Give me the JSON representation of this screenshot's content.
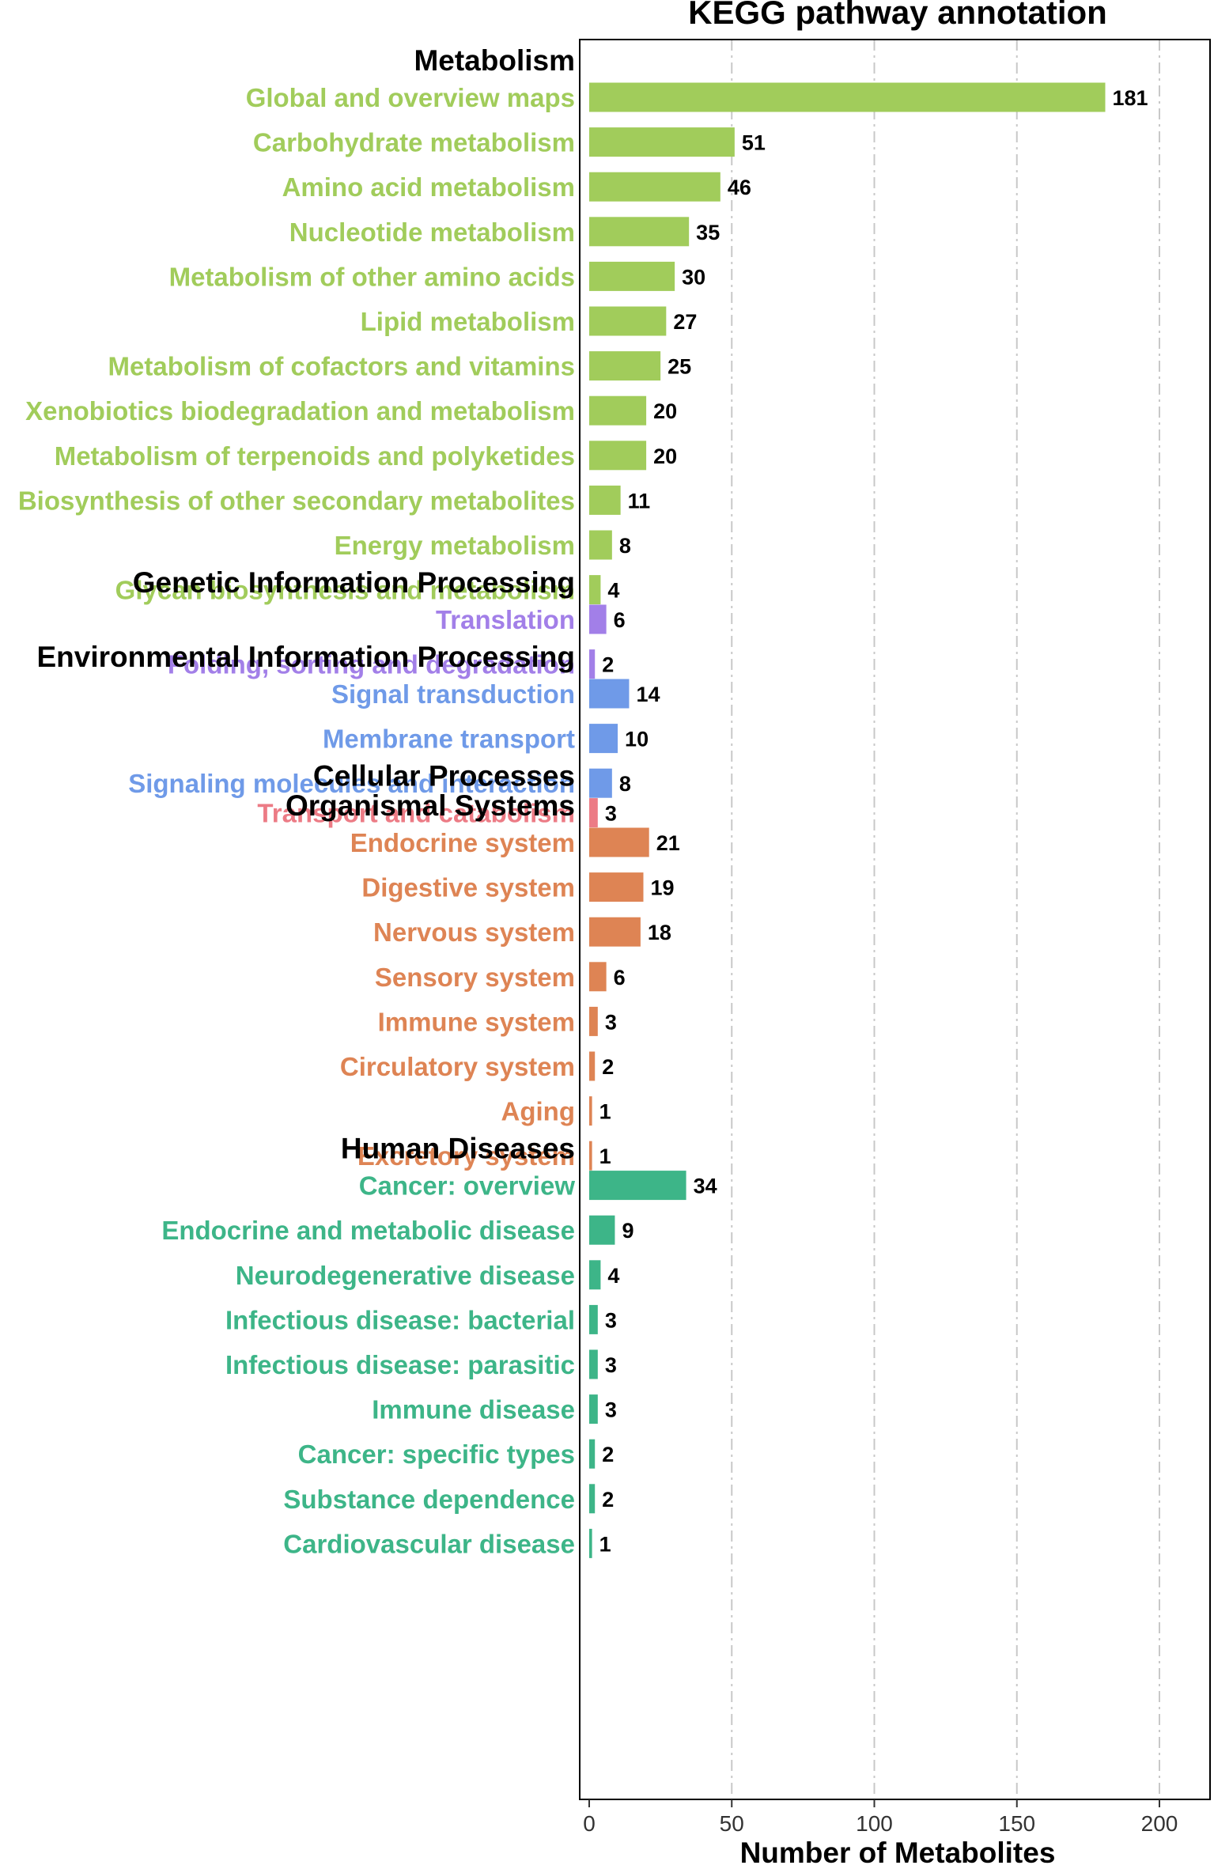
{
  "chart_data": {
    "type": "bar",
    "orientation": "horizontal",
    "title": "KEGG pathway annotation",
    "xlabel": "Number of Metabolites",
    "ylabel": "",
    "xlim": [
      0,
      210
    ],
    "xticks": [
      0,
      50,
      100,
      150,
      200
    ],
    "grid": "vertical dashed",
    "legend": "none",
    "groups": [
      {
        "name": "Metabolism",
        "color": "#a1cc5b",
        "items": [
          {
            "label": "Global and overview maps",
            "value": 181
          },
          {
            "label": "Carbohydrate metabolism",
            "value": 51
          },
          {
            "label": "Amino acid metabolism",
            "value": 46
          },
          {
            "label": "Nucleotide metabolism",
            "value": 35
          },
          {
            "label": "Metabolism of other amino acids",
            "value": 30
          },
          {
            "label": "Lipid metabolism",
            "value": 27
          },
          {
            "label": "Metabolism of cofactors and vitamins",
            "value": 25
          },
          {
            "label": "Xenobiotics biodegradation and metabolism",
            "value": 20
          },
          {
            "label": "Metabolism of terpenoids and polyketides",
            "value": 20
          },
          {
            "label": "Biosynthesis of other secondary metabolites",
            "value": 11
          },
          {
            "label": "Energy metabolism",
            "value": 8
          },
          {
            "label": "Glycan biosynthesis and metabolism",
            "value": 4
          }
        ]
      },
      {
        "name": "Genetic Information Processing",
        "color": "#a27fe8",
        "items": [
          {
            "label": "Translation",
            "value": 6
          },
          {
            "label": "Folding, sorting and degradation",
            "value": 2
          }
        ]
      },
      {
        "name": "Environmental Information Processing",
        "color": "#6f9ae8",
        "items": [
          {
            "label": "Signal transduction",
            "value": 14
          },
          {
            "label": "Membrane transport",
            "value": 10
          },
          {
            "label": "Signaling molecules and interaction",
            "value": 8
          }
        ]
      },
      {
        "name": "Cellular Processes",
        "color": "#ec7b85",
        "items": [
          {
            "label": "Transport and catabolism",
            "value": 3
          }
        ]
      },
      {
        "name": "Organismal Systems",
        "color": "#de8454",
        "items": [
          {
            "label": "Endocrine system",
            "value": 21
          },
          {
            "label": "Digestive system",
            "value": 19
          },
          {
            "label": "Nervous system",
            "value": 18
          },
          {
            "label": "Sensory system",
            "value": 6
          },
          {
            "label": "Immune system",
            "value": 3
          },
          {
            "label": "Circulatory system",
            "value": 2
          },
          {
            "label": "Aging",
            "value": 1
          },
          {
            "label": "Excretory system",
            "value": 1
          }
        ]
      },
      {
        "name": "Human Diseases",
        "color": "#3db588",
        "items": [
          {
            "label": "Cancer: overview",
            "value": 34
          },
          {
            "label": "Endocrine and metabolic disease",
            "value": 9
          },
          {
            "label": "Neurodegenerative disease",
            "value": 4
          },
          {
            "label": "Infectious disease: bacterial",
            "value": 3
          },
          {
            "label": "Infectious disease: parasitic",
            "value": 3
          },
          {
            "label": "Immune disease",
            "value": 3
          },
          {
            "label": "Cancer: specific types",
            "value": 2
          },
          {
            "label": "Substance dependence",
            "value": 2
          },
          {
            "label": "Cardiovascular disease",
            "value": 1
          }
        ]
      }
    ]
  }
}
